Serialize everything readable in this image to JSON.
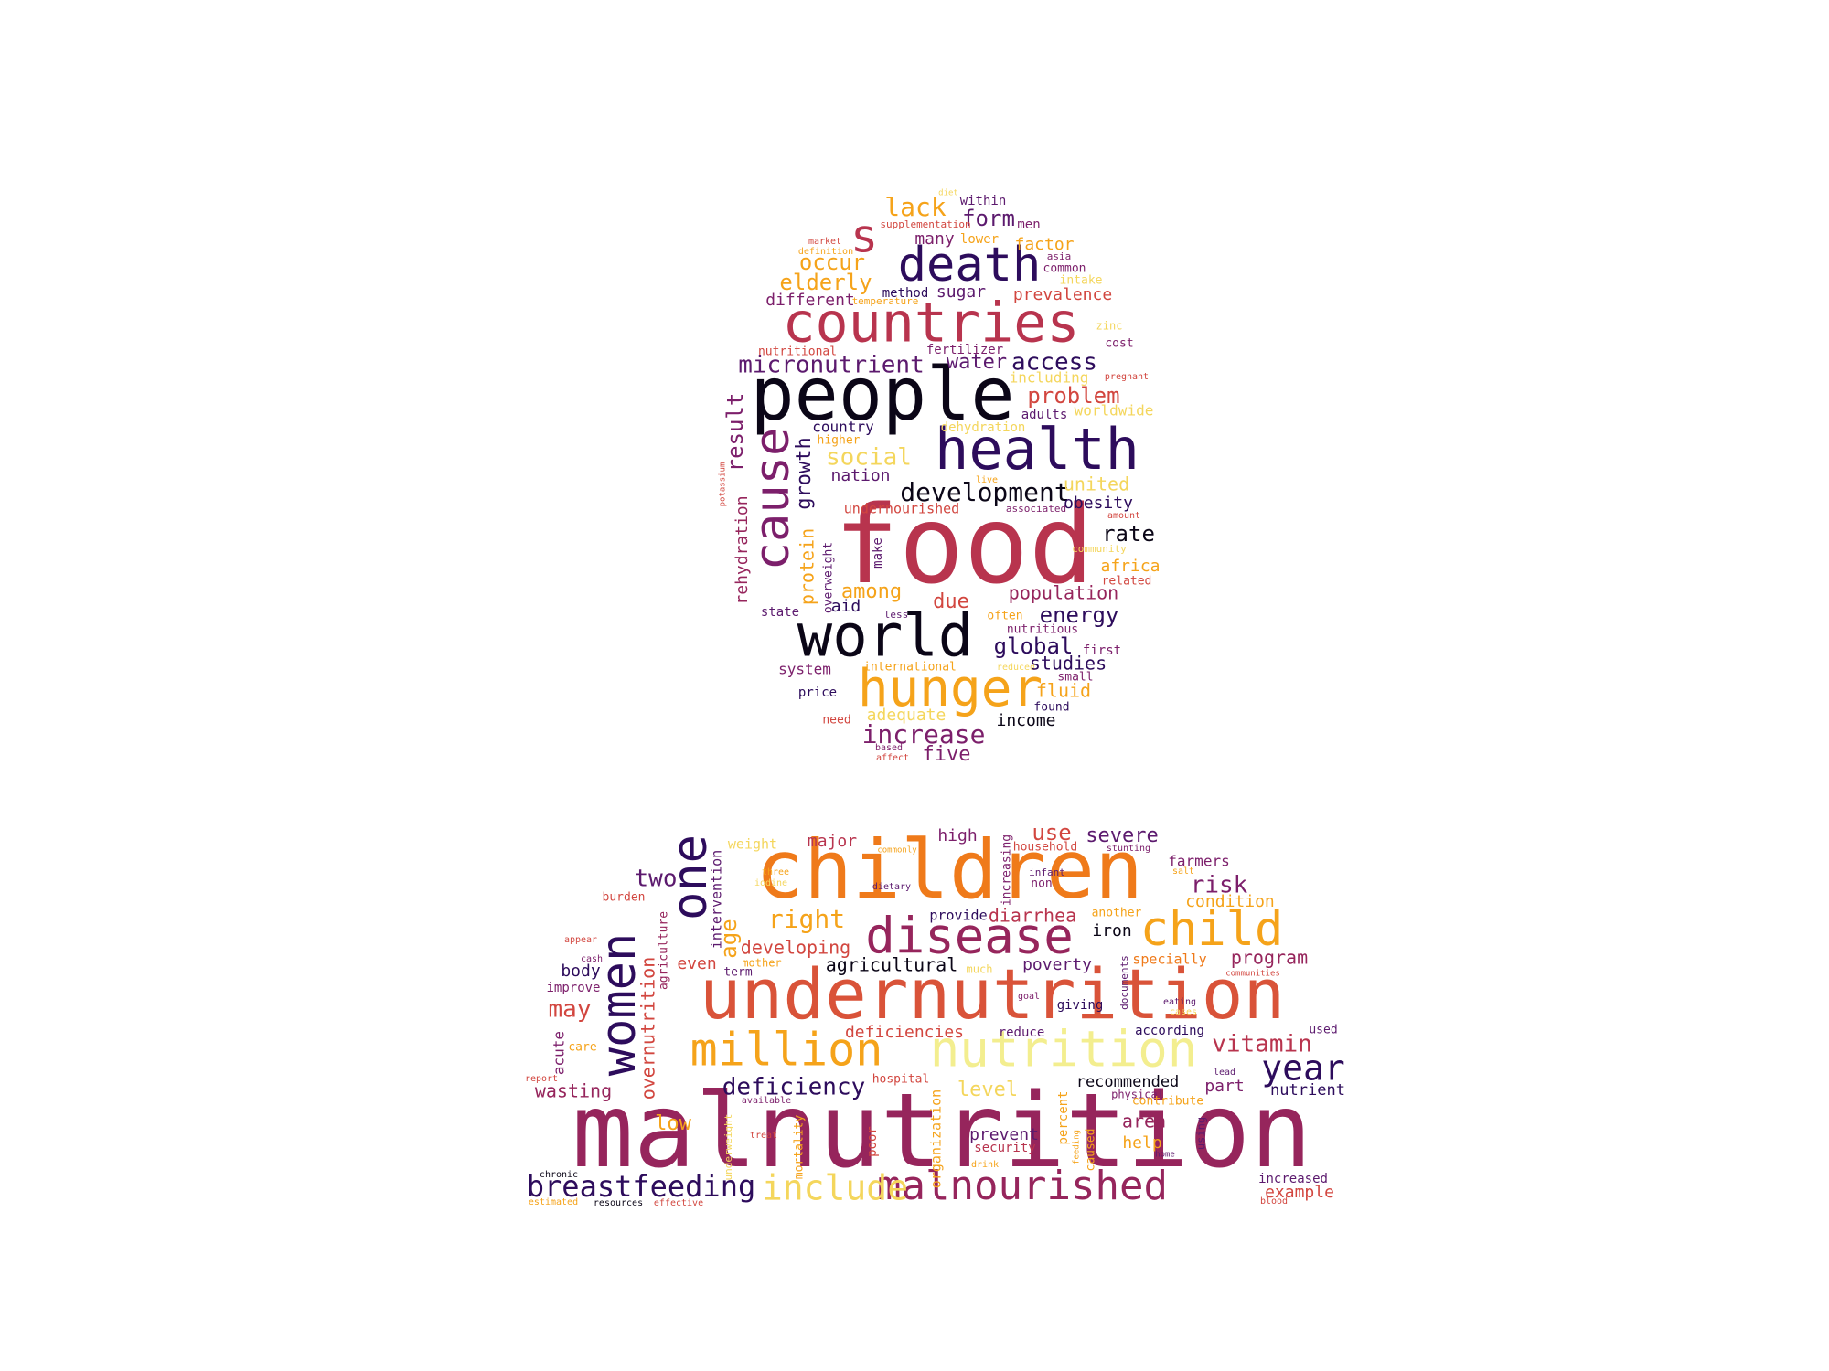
{
  "palette": {
    "black": "#0b0617",
    "indigo": "#2d0c5c",
    "purple": "#5c1a6e",
    "plum": "#7c1f6b",
    "magenta": "#96255c",
    "crimson": "#b8344e",
    "red": "#d2463f",
    "redorange": "#d95339",
    "orange": "#e3622b",
    "amber": "#ef7a1a",
    "gold": "#f5a31a",
    "yellow": "#f4d65c",
    "pale": "#f3ee8f"
  },
  "words": [
    {
      "id": "food",
      "text": "food",
      "color": "crimson"
    },
    {
      "id": "people",
      "text": "people",
      "color": "black"
    },
    {
      "id": "health",
      "text": "health",
      "color": "indigo"
    },
    {
      "id": "countries",
      "text": "countries",
      "color": "crimson"
    },
    {
      "id": "death",
      "text": "death",
      "color": "indigo"
    },
    {
      "id": "world",
      "text": "world",
      "color": "black"
    },
    {
      "id": "hunger",
      "text": "hunger",
      "color": "gold"
    },
    {
      "id": "cause",
      "text": "cause",
      "color": "plum"
    },
    {
      "id": "s",
      "text": "s",
      "color": "crimson"
    },
    {
      "id": "lack",
      "text": "lack",
      "color": "gold"
    },
    {
      "id": "form",
      "text": "form",
      "color": "purple"
    },
    {
      "id": "men",
      "text": "men",
      "color": "plum"
    },
    {
      "id": "within",
      "text": "within",
      "color": "purple"
    },
    {
      "id": "diet",
      "text": "diet",
      "color": "yellow"
    },
    {
      "id": "supplementation",
      "text": "supplementation",
      "color": "red"
    },
    {
      "id": "many",
      "text": "many",
      "color": "plum"
    },
    {
      "id": "lower",
      "text": "lower",
      "color": "gold"
    },
    {
      "id": "factor",
      "text": "factor",
      "color": "gold"
    },
    {
      "id": "market",
      "text": "market",
      "color": "red"
    },
    {
      "id": "definition",
      "text": "definition",
      "color": "gold"
    },
    {
      "id": "occur",
      "text": "occur",
      "color": "gold"
    },
    {
      "id": "asia",
      "text": "asia",
      "color": "plum"
    },
    {
      "id": "common",
      "text": "common",
      "color": "plum"
    },
    {
      "id": "elderly",
      "text": "elderly",
      "color": "gold"
    },
    {
      "id": "intake",
      "text": "intake",
      "color": "yellow"
    },
    {
      "id": "method",
      "text": "method",
      "color": "indigo"
    },
    {
      "id": "sugar",
      "text": "sugar",
      "color": "purple"
    },
    {
      "id": "prevalence",
      "text": "prevalence",
      "color": "red"
    },
    {
      "id": "different",
      "text": "different",
      "color": "plum"
    },
    {
      "id": "temperature",
      "text": "temperature",
      "color": "gold"
    },
    {
      "id": "zinc",
      "text": "zinc",
      "color": "yellow"
    },
    {
      "id": "cost",
      "text": "cost",
      "color": "plum"
    },
    {
      "id": "nutritional",
      "text": "nutritional",
      "color": "red"
    },
    {
      "id": "fertilizer",
      "text": "fertilizer",
      "color": "plum"
    },
    {
      "id": "micronutrient",
      "text": "micronutrient",
      "color": "purple"
    },
    {
      "id": "water",
      "text": "water",
      "color": "purple"
    },
    {
      "id": "access",
      "text": "access",
      "color": "indigo"
    },
    {
      "id": "including",
      "text": "including",
      "color": "yellow"
    },
    {
      "id": "pregnant",
      "text": "pregnant",
      "color": "red"
    },
    {
      "id": "problem",
      "text": "problem",
      "color": "red"
    },
    {
      "id": "adults",
      "text": "adults",
      "color": "purple"
    },
    {
      "id": "worldwide",
      "text": "worldwide",
      "color": "yellow"
    },
    {
      "id": "country",
      "text": "country",
      "color": "indigo"
    },
    {
      "id": "dehydration",
      "text": "dehydration",
      "color": "yellow"
    },
    {
      "id": "higher",
      "text": "higher",
      "color": "gold"
    },
    {
      "id": "social",
      "text": "social",
      "color": "yellow"
    },
    {
      "id": "nation",
      "text": "nation",
      "color": "purple"
    },
    {
      "id": "result",
      "text": "result",
      "color": "plum"
    },
    {
      "id": "growth",
      "text": "growth",
      "color": "indigo"
    },
    {
      "id": "development",
      "text": "development",
      "color": "black"
    },
    {
      "id": "live",
      "text": "live",
      "color": "gold"
    },
    {
      "id": "united",
      "text": "united",
      "color": "yellow"
    },
    {
      "id": "potassium",
      "text": "potassium",
      "color": "red"
    },
    {
      "id": "rehydration",
      "text": "rehydration",
      "color": "magenta"
    },
    {
      "id": "protein",
      "text": "protein",
      "color": "gold"
    },
    {
      "id": "overweight",
      "text": "overweight",
      "color": "purple"
    },
    {
      "id": "undernourished",
      "text": "undernourished",
      "color": "red"
    },
    {
      "id": "associated",
      "text": "associated",
      "color": "plum"
    },
    {
      "id": "obesity",
      "text": "obesity",
      "color": "indigo"
    },
    {
      "id": "amount",
      "text": "amount",
      "color": "red"
    },
    {
      "id": "make",
      "text": "make",
      "color": "purple"
    },
    {
      "id": "rate",
      "text": "rate",
      "color": "black"
    },
    {
      "id": "community",
      "text": "community",
      "color": "yellow"
    },
    {
      "id": "africa",
      "text": "africa",
      "color": "gold"
    },
    {
      "id": "related",
      "text": "related",
      "color": "red"
    },
    {
      "id": "among",
      "text": "among",
      "color": "gold"
    },
    {
      "id": "population",
      "text": "population",
      "color": "magenta"
    },
    {
      "id": "due",
      "text": "due",
      "color": "red"
    },
    {
      "id": "state",
      "text": "state",
      "color": "purple"
    },
    {
      "id": "aid",
      "text": "aid",
      "color": "indigo"
    },
    {
      "id": "less",
      "text": "less",
      "color": "purple"
    },
    {
      "id": "often",
      "text": "often",
      "color": "gold"
    },
    {
      "id": "energy",
      "text": "energy",
      "color": "indigo"
    },
    {
      "id": "nutritious",
      "text": "nutritious",
      "color": "plum"
    },
    {
      "id": "global",
      "text": "global",
      "color": "indigo"
    },
    {
      "id": "first",
      "text": "first",
      "color": "plum"
    },
    {
      "id": "system",
      "text": "system",
      "color": "plum"
    },
    {
      "id": "international",
      "text": "international",
      "color": "gold"
    },
    {
      "id": "reduced",
      "text": "reduced",
      "color": "yellow"
    },
    {
      "id": "studies",
      "text": "studies",
      "color": "indigo"
    },
    {
      "id": "small",
      "text": "small",
      "color": "plum"
    },
    {
      "id": "price",
      "text": "price",
      "color": "indigo"
    },
    {
      "id": "fluid",
      "text": "fluid",
      "color": "gold"
    },
    {
      "id": "found",
      "text": "found",
      "color": "indigo"
    },
    {
      "id": "need",
      "text": "need",
      "color": "red"
    },
    {
      "id": "adequate",
      "text": "adequate",
      "color": "yellow"
    },
    {
      "id": "income",
      "text": "income",
      "color": "black"
    },
    {
      "id": "increase",
      "text": "increase",
      "color": "plum"
    },
    {
      "id": "based",
      "text": "based",
      "color": "plum"
    },
    {
      "id": "affect",
      "text": "affect",
      "color": "red"
    },
    {
      "id": "five",
      "text": "five",
      "color": "plum"
    },
    {
      "id": "malnutrition",
      "text": "malnutrition",
      "color": "magenta"
    },
    {
      "id": "undernutrition",
      "text": "undernutrition",
      "color": "redorange"
    },
    {
      "id": "children",
      "text": "children",
      "color": "amber"
    },
    {
      "id": "disease",
      "text": "disease",
      "color": "magenta"
    },
    {
      "id": "nutrition",
      "text": "nutrition",
      "color": "pale"
    },
    {
      "id": "million",
      "text": "million",
      "color": "gold"
    },
    {
      "id": "malnourished",
      "text": "malnourished",
      "color": "magenta"
    },
    {
      "id": "women",
      "text": "women",
      "color": "indigo"
    },
    {
      "id": "one",
      "text": "one",
      "color": "indigo"
    },
    {
      "id": "child",
      "text": "child",
      "color": "gold"
    },
    {
      "id": "breastfeeding",
      "text": "breastfeeding",
      "color": "indigo"
    },
    {
      "id": "include",
      "text": "include",
      "color": "yellow"
    },
    {
      "id": "year",
      "text": "year",
      "color": "indigo"
    },
    {
      "id": "deficiency",
      "text": "deficiency",
      "color": "indigo"
    },
    {
      "id": "weight",
      "text": "weight",
      "color": "yellow"
    },
    {
      "id": "major",
      "text": "major",
      "color": "crimson"
    },
    {
      "id": "commonly",
      "text": "commonly",
      "color": "gold"
    },
    {
      "id": "high",
      "text": "high",
      "color": "plum"
    },
    {
      "id": "increasing",
      "text": "increasing",
      "color": "plum"
    },
    {
      "id": "use",
      "text": "use",
      "color": "red"
    },
    {
      "id": "household",
      "text": "household",
      "color": "red"
    },
    {
      "id": "severe",
      "text": "severe",
      "color": "purple"
    },
    {
      "id": "stunting",
      "text": "stunting",
      "color": "plum"
    },
    {
      "id": "farmers",
      "text": "farmers",
      "color": "plum"
    },
    {
      "id": "salt",
      "text": "salt",
      "color": "gold"
    },
    {
      "id": "risk",
      "text": "risk",
      "color": "plum"
    },
    {
      "id": "condition",
      "text": "condition",
      "color": "gold"
    },
    {
      "id": "two",
      "text": "two",
      "color": "purple"
    },
    {
      "id": "three",
      "text": "three",
      "color": "gold"
    },
    {
      "id": "iodine",
      "text": "iodine",
      "color": "yellow"
    },
    {
      "id": "dietary",
      "text": "dietary",
      "color": "purple"
    },
    {
      "id": "infant",
      "text": "infant",
      "color": "purple"
    },
    {
      "id": "non",
      "text": "non",
      "color": "plum"
    },
    {
      "id": "intervention",
      "text": "intervention",
      "color": "purple"
    },
    {
      "id": "burden",
      "text": "burden",
      "color": "red"
    },
    {
      "id": "right",
      "text": "right",
      "color": "gold"
    },
    {
      "id": "provide",
      "text": "provide",
      "color": "indigo"
    },
    {
      "id": "diarrhea",
      "text": "diarrhea",
      "color": "crimson"
    },
    {
      "id": "another",
      "text": "another",
      "color": "gold"
    },
    {
      "id": "iron",
      "text": "iron",
      "color": "black"
    },
    {
      "id": "appear",
      "text": "appear",
      "color": "red"
    },
    {
      "id": "age",
      "text": "age",
      "color": "gold"
    },
    {
      "id": "developing",
      "text": "developing",
      "color": "red"
    },
    {
      "id": "specially",
      "text": "specially",
      "color": "amber"
    },
    {
      "id": "program",
      "text": "program",
      "color": "magenta"
    },
    {
      "id": "cash",
      "text": "cash",
      "color": "plum"
    },
    {
      "id": "agriculture",
      "text": "agriculture",
      "color": "magenta"
    },
    {
      "id": "mother",
      "text": "mother",
      "color": "gold"
    },
    {
      "id": "body",
      "text": "body",
      "color": "indigo"
    },
    {
      "id": "even",
      "text": "even",
      "color": "red"
    },
    {
      "id": "term",
      "text": "term",
      "color": "purple"
    },
    {
      "id": "agricultural",
      "text": "agricultural",
      "color": "black"
    },
    {
      "id": "much",
      "text": "much",
      "color": "yellow"
    },
    {
      "id": "poverty",
      "text": "poverty",
      "color": "purple"
    },
    {
      "id": "communities",
      "text": "communities",
      "color": "red"
    },
    {
      "id": "documents",
      "text": "documents",
      "color": "purple"
    },
    {
      "id": "improve",
      "text": "improve",
      "color": "plum"
    },
    {
      "id": "overnutrition",
      "text": "overnutrition",
      "color": "red"
    },
    {
      "id": "goal",
      "text": "goal",
      "color": "plum"
    },
    {
      "id": "giving",
      "text": "giving",
      "color": "indigo"
    },
    {
      "id": "eating",
      "text": "eating",
      "color": "purple"
    },
    {
      "id": "cases",
      "text": "cases",
      "color": "yellow"
    },
    {
      "id": "may",
      "text": "may",
      "color": "red"
    },
    {
      "id": "deficiencies",
      "text": "deficiencies",
      "color": "red"
    },
    {
      "id": "reduce",
      "text": "reduce",
      "color": "purple"
    },
    {
      "id": "according",
      "text": "according",
      "color": "indigo"
    },
    {
      "id": "used",
      "text": "used",
      "color": "purple"
    },
    {
      "id": "acute",
      "text": "acute",
      "color": "plum"
    },
    {
      "id": "vitamin",
      "text": "vitamin",
      "color": "crimson"
    },
    {
      "id": "care",
      "text": "care",
      "color": "gold"
    },
    {
      "id": "recommended",
      "text": "recommended",
      "color": "black"
    },
    {
      "id": "lead",
      "text": "lead",
      "color": "purple"
    },
    {
      "id": "report",
      "text": "report",
      "color": "red"
    },
    {
      "id": "hospital",
      "text": "hospital",
      "color": "red"
    },
    {
      "id": "level",
      "text": "level",
      "color": "yellow"
    },
    {
      "id": "physical",
      "text": "physical",
      "color": "plum"
    },
    {
      "id": "part",
      "text": "part",
      "color": "plum"
    },
    {
      "id": "nutrient",
      "text": "nutrient",
      "color": "indigo"
    },
    {
      "id": "wasting",
      "text": "wasting",
      "color": "magenta"
    },
    {
      "id": "available",
      "text": "available",
      "color": "plum"
    },
    {
      "id": "contribute",
      "text": "contribute",
      "color": "gold"
    },
    {
      "id": "organization",
      "text": "organization",
      "color": "gold"
    },
    {
      "id": "percent",
      "text": "percent",
      "color": "gold"
    },
    {
      "id": "area",
      "text": "area",
      "color": "magenta"
    },
    {
      "id": "low",
      "text": "low",
      "color": "gold"
    },
    {
      "id": "treat",
      "text": "treat",
      "color": "red"
    },
    {
      "id": "mortality",
      "text": "mortality",
      "color": "gold"
    },
    {
      "id": "poor",
      "text": "poor",
      "color": "red"
    },
    {
      "id": "prevent",
      "text": "prevent",
      "color": "purple"
    },
    {
      "id": "security",
      "text": "security",
      "color": "crimson"
    },
    {
      "id": "feeding",
      "text": "feeding",
      "color": "gold"
    },
    {
      "id": "caused",
      "text": "caused",
      "color": "gold"
    },
    {
      "id": "help",
      "text": "help",
      "color": "gold"
    },
    {
      "id": "using",
      "text": "using",
      "color": "purple"
    },
    {
      "id": "home",
      "text": "home",
      "color": "purple"
    },
    {
      "id": "drink",
      "text": "drink",
      "color": "gold"
    },
    {
      "id": "chronic",
      "text": "chronic",
      "color": "black"
    },
    {
      "id": "underweight",
      "text": "underweight",
      "color": "yellow"
    },
    {
      "id": "increased",
      "text": "increased",
      "color": "purple"
    },
    {
      "id": "example",
      "text": "example",
      "color": "red"
    },
    {
      "id": "blood",
      "text": "blood",
      "color": "red"
    },
    {
      "id": "estimated",
      "text": "estimated",
      "color": "gold"
    },
    {
      "id": "resources",
      "text": "resources",
      "color": "black"
    },
    {
      "id": "effective",
      "text": "effective",
      "color": "red"
    }
  ]
}
